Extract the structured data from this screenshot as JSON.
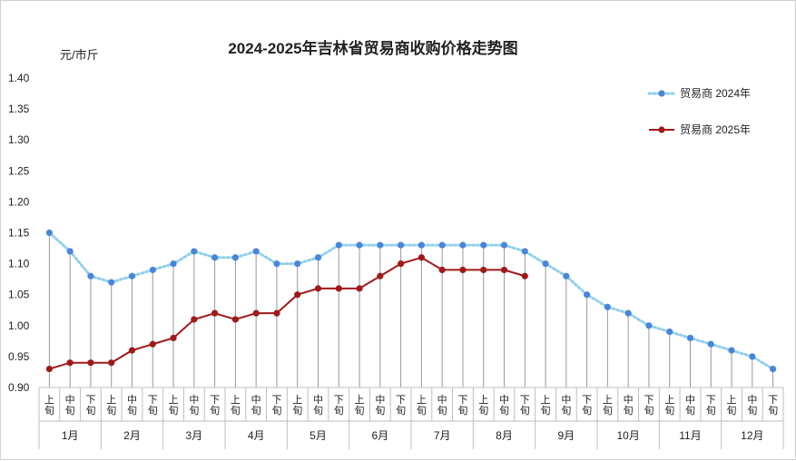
{
  "chart_data": {
    "type": "line",
    "title": "2024-2025年吉林省贸易商收购价格走势图",
    "ylabel": "元/市斤",
    "xlabel": "",
    "ylim": [
      0.9,
      1.4
    ],
    "yticks": [
      "0.90",
      "0.95",
      "1.00",
      "1.05",
      "1.10",
      "1.15",
      "1.20",
      "1.25",
      "1.30",
      "1.35",
      "1.40"
    ],
    "grid": "vertical drop lines",
    "legend_position": "top-right",
    "periods": [
      "上旬",
      "中旬",
      "下旬"
    ],
    "months": [
      "1月",
      "2月",
      "3月",
      "4月",
      "5月",
      "6月",
      "7月",
      "8月",
      "9月",
      "10月",
      "11月",
      "12月"
    ],
    "series": [
      {
        "name": "贸易商 2024年",
        "color": "#4a86d8",
        "line_color": "#8fd0ec",
        "style": "dotted",
        "values": [
          1.15,
          1.12,
          1.08,
          1.07,
          1.08,
          1.09,
          1.1,
          1.12,
          1.11,
          1.11,
          1.12,
          1.1,
          1.1,
          1.11,
          1.13,
          1.13,
          1.13,
          1.13,
          1.13,
          1.13,
          1.13,
          1.13,
          1.13,
          1.12,
          1.1,
          1.08,
          1.05,
          1.03,
          1.02,
          1.0,
          0.99,
          0.98,
          0.97,
          0.96,
          0.95,
          0.93
        ]
      },
      {
        "name": "贸易商 2025年",
        "color": "#a01a1a",
        "line_color": "#a01a1a",
        "style": "solid",
        "values": [
          0.93,
          0.94,
          0.94,
          0.94,
          0.96,
          0.97,
          0.98,
          1.01,
          1.02,
          1.01,
          1.02,
          1.02,
          1.05,
          1.06,
          1.06,
          1.06,
          1.08,
          1.1,
          1.11,
          1.09,
          1.09,
          1.09,
          1.09,
          1.08
        ]
      }
    ]
  }
}
